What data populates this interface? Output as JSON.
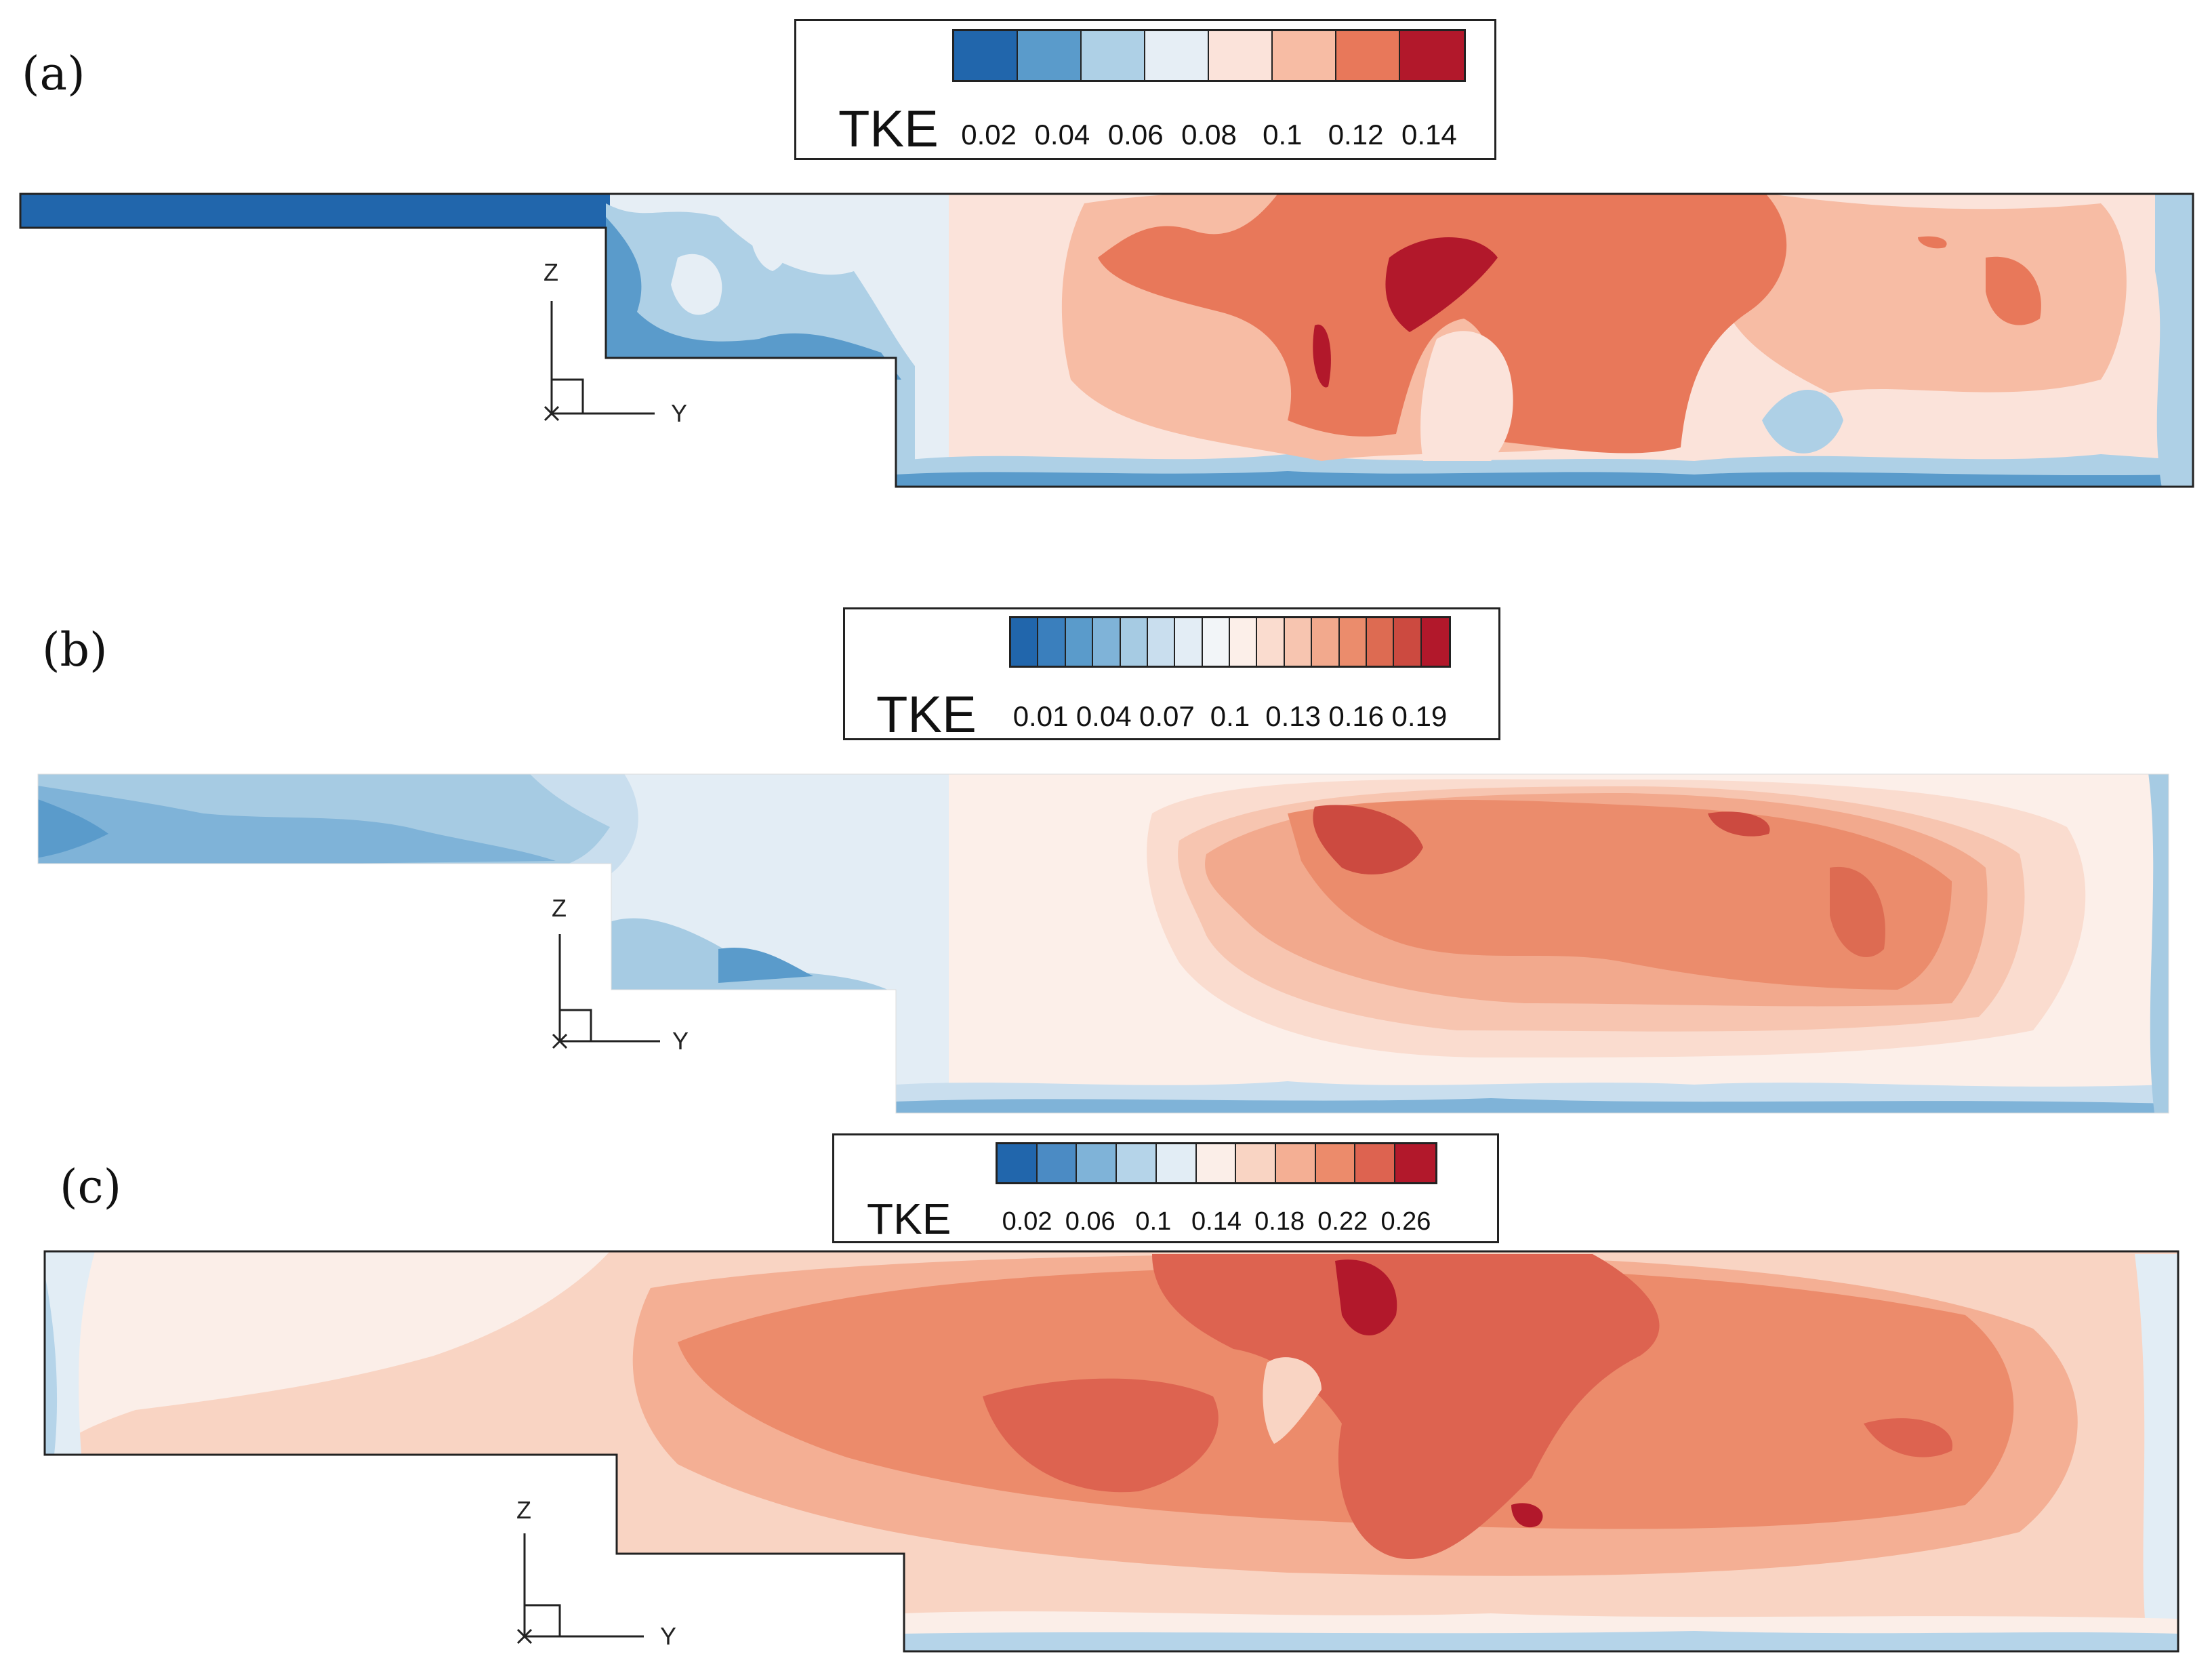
{
  "panels": [
    {
      "label": "(a)",
      "legend": {
        "title": "TKE",
        "ticks": [
          "0.02",
          "0.04",
          "0.06",
          "0.08",
          "0.1",
          "0.12",
          "0.14"
        ],
        "colors": [
          "#2166ac",
          "#5a9bcb",
          "#aed0e6",
          "#e6eef5",
          "#fbe3da",
          "#f7bca4",
          "#e8785a",
          "#b2182b"
        ]
      }
    },
    {
      "label": "(b)",
      "legend": {
        "title": "TKE",
        "ticks": [
          "0.01",
          "0.04",
          "0.07",
          "0.1",
          "0.13",
          "0.16",
          "0.19"
        ],
        "colors": [
          "#2166ac",
          "#3a7fbd",
          "#5a9bcb",
          "#7fb3d8",
          "#a6cbe3",
          "#c9deee",
          "#e3edf5",
          "#f2f5f8",
          "#fcefe9",
          "#fadccf",
          "#f7c5b0",
          "#f2a98d",
          "#eb8c6c",
          "#dd6b52",
          "#cc4a40",
          "#b2182b"
        ]
      }
    },
    {
      "label": "(c)",
      "legend": {
        "title": "TKE",
        "ticks": [
          "0.02",
          "0.06",
          "0.1",
          "0.14",
          "0.18",
          "0.22",
          "0.26"
        ],
        "colors": [
          "#2166ac",
          "#4b8bc4",
          "#7fb3d8",
          "#b5d4e9",
          "#e2edf5",
          "#fbeee8",
          "#f9d4c3",
          "#f4af94",
          "#ec8b6b",
          "#dd6350",
          "#b2182b"
        ]
      }
    }
  ],
  "axes": {
    "z_label": "Z",
    "y_label": "Y",
    "x_label": "X"
  }
}
